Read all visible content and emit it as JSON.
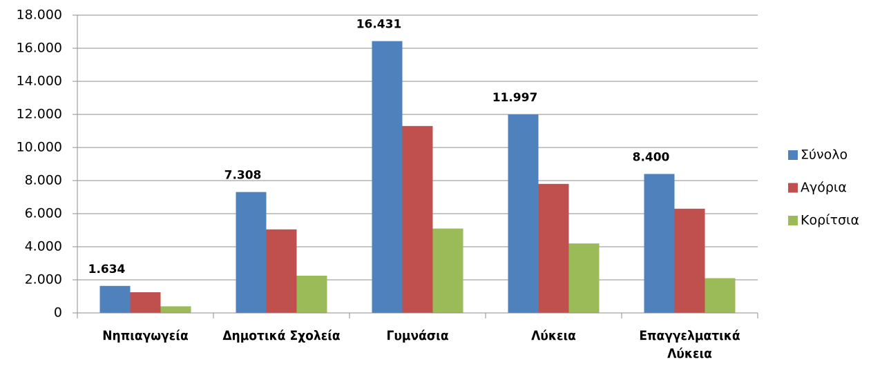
{
  "chart_data": {
    "type": "bar",
    "categories": [
      "Νηπιαγωγεία",
      "Δημοτικά Σχολεία",
      "Γυμνάσια",
      "Λύκεια",
      "Επαγγελματικά Λύκεια"
    ],
    "series": [
      {
        "name": "Σύνολο",
        "color": "#4f81bd",
        "values": [
          1634,
          7308,
          16431,
          11997,
          8400
        ],
        "value_labels": [
          "1.634",
          "7.308",
          "16.431",
          "11.997",
          "8.400"
        ]
      },
      {
        "name": "Αγόρια",
        "color": "#c0504d",
        "values": [
          1250,
          5050,
          11300,
          7800,
          6300
        ]
      },
      {
        "name": "Κορίτσια",
        "color": "#9bbb59",
        "values": [
          400,
          2250,
          5100,
          4200,
          2100
        ]
      }
    ],
    "ylim": [
      0,
      18000
    ],
    "yticks": [
      0,
      {
        "value": 2000,
        "label": "2.000"
      },
      {
        "value": 4000,
        "label": "4.000"
      },
      {
        "value": 6000,
        "label": "6.000"
      },
      {
        "value": 8000,
        "label": "8.000"
      },
      {
        "value": 10000,
        "label": "10.000"
      },
      {
        "value": 12000,
        "label": "12.000"
      },
      {
        "value": 14000,
        "label": "14.000"
      },
      {
        "value": 16000,
        "label": "16.000"
      },
      {
        "value": 18000,
        "label": "18.000"
      }
    ],
    "grid": true,
    "legend": "right"
  }
}
